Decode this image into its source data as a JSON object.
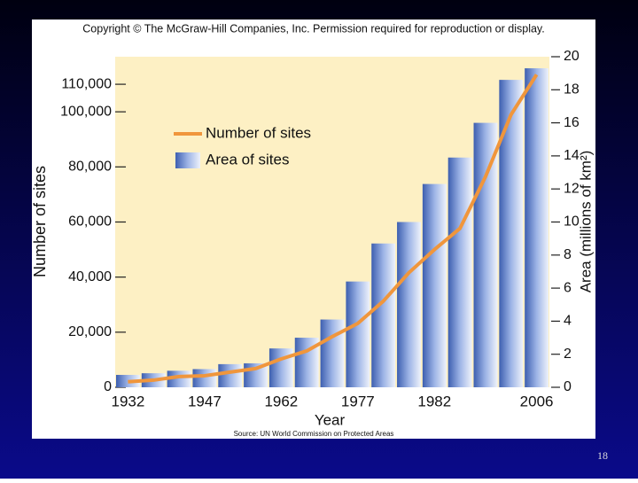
{
  "copyright": "Copyright © The McGraw-Hill Companies, Inc. Permission required for reproduction or display.",
  "source": "Source: UN World Commission on Protected Areas",
  "slide_number": "18",
  "chart_data": {
    "type": "combo",
    "x_label": "Year",
    "y_label": "Number of sites",
    "y2_label": "Area (millions of km²)",
    "categories": [
      "1932",
      null,
      null,
      "1947",
      null,
      null,
      "1962",
      null,
      null,
      "1977",
      null,
      null,
      "1982",
      null,
      null,
      null,
      "2006"
    ],
    "series": [
      {
        "name": "Number of sites",
        "color": "#f0963c",
        "kind": "line",
        "values": [
          2000,
          2600,
          3900,
          4200,
          5500,
          6800,
          10300,
          13200,
          18400,
          23200,
          31300,
          41600,
          50000,
          57700,
          76500,
          99000,
          113500
        ]
      },
      {
        "name": "Area of sites",
        "color": "#8aa6dc",
        "kind": "bar",
        "axis": "y2",
        "values": [
          0.75,
          0.85,
          1.0,
          1.1,
          1.4,
          1.45,
          2.35,
          3.0,
          4.1,
          6.4,
          8.7,
          10.0,
          12.3,
          13.9,
          16.0,
          18.6,
          19.3
        ]
      }
    ],
    "ylim": [
      0,
      120000
    ],
    "yticks": [
      {
        "value": 0,
        "label": "0"
      },
      {
        "value": 20000,
        "label": "20,000"
      },
      {
        "value": 40000,
        "label": "40,000"
      },
      {
        "value": 60000,
        "label": "60,000"
      },
      {
        "value": 80000,
        "label": "80,000"
      },
      {
        "value": 100000,
        "label": "100,000"
      },
      {
        "value": 110000,
        "label": "110,000"
      }
    ],
    "y2lim": [
      0,
      20
    ],
    "y2ticks": [
      0,
      2,
      4,
      6,
      8,
      10,
      12,
      14,
      16,
      18,
      20
    ]
  }
}
